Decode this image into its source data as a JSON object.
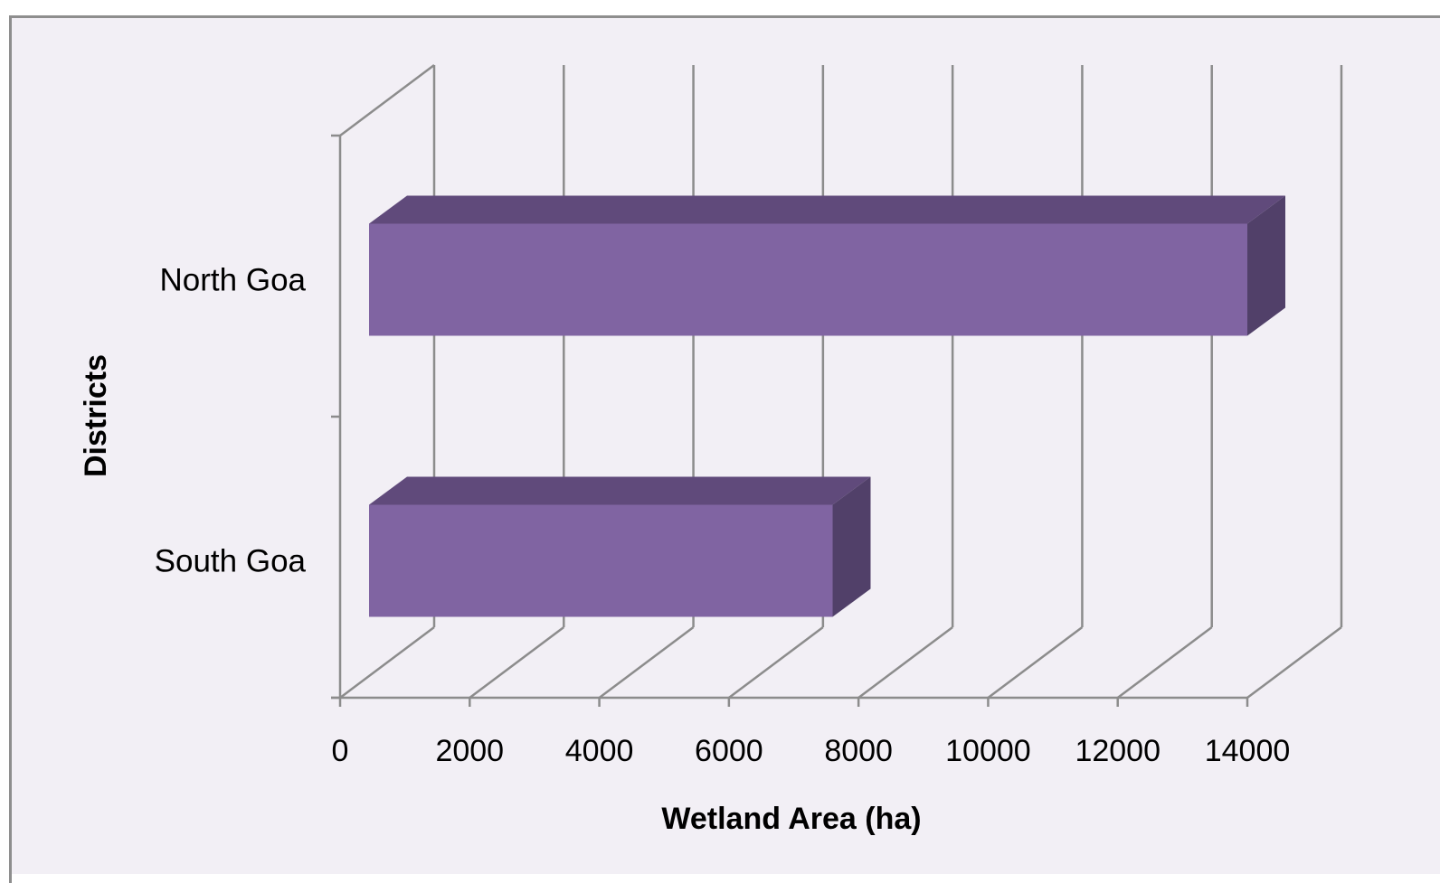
{
  "chart_data": {
    "type": "bar",
    "orientation": "horizontal",
    "style": "3d",
    "categories": [
      "North Goa",
      "South Goa"
    ],
    "values": [
      14000,
      7600
    ],
    "xlabel": "Wetland Area (ha)",
    "ylabel": "Districts",
    "xlim": [
      0,
      14000
    ],
    "x_ticks": [
      "0",
      "2000",
      "4000",
      "6000",
      "8000",
      "10000",
      "12000",
      "14000"
    ],
    "grid": true,
    "legend": "none",
    "colors": {
      "bar_front": "#8064a2",
      "bar_top": "#604a7b",
      "bar_side": "#514069",
      "background": "#f2eff5",
      "grid": "#8c8c8c"
    }
  }
}
